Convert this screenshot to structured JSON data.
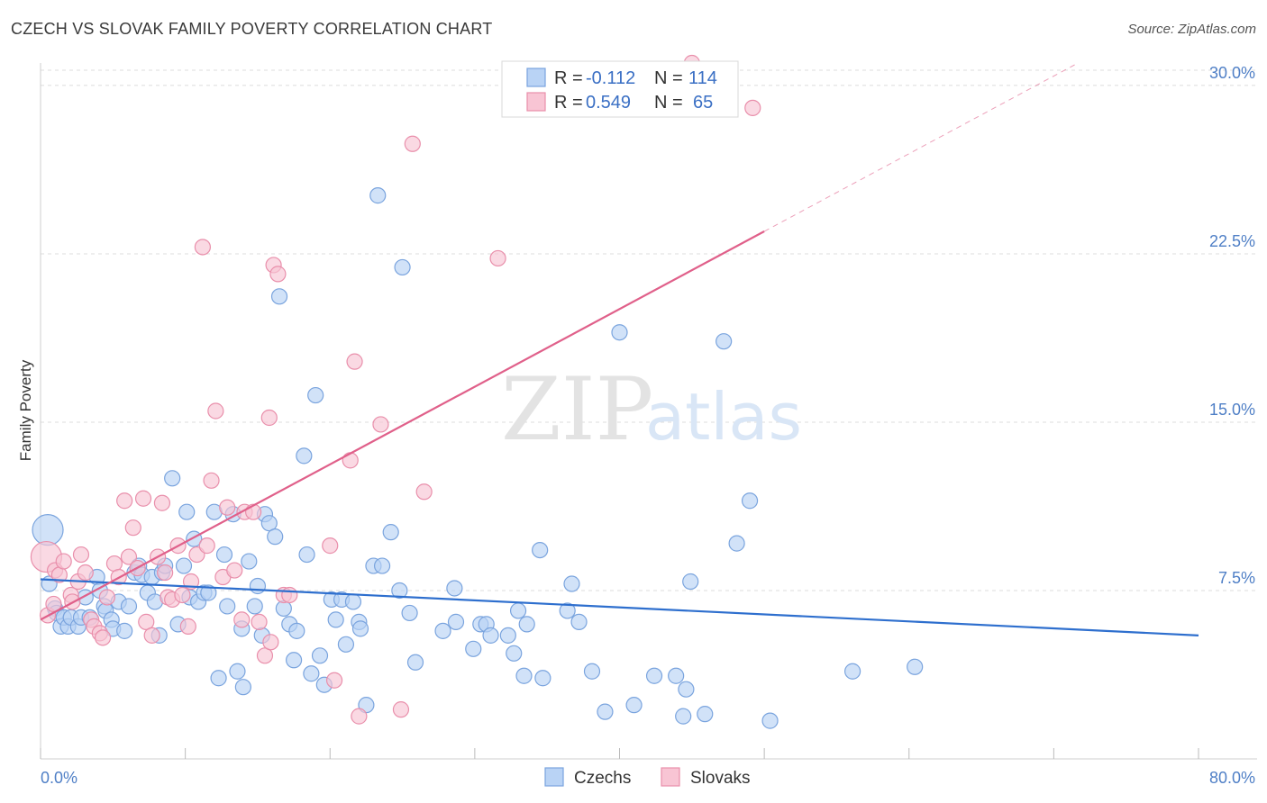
{
  "title": "CZECH VS SLOVAK FAMILY POVERTY CORRELATION CHART",
  "source": "Source: ZipAtlas.com",
  "watermark": {
    "zip": "ZIP",
    "atlas": "atlas"
  },
  "legend_top": [
    {
      "r_label": "R =",
      "r_value": "-0.112",
      "n_label": "N =",
      "n_value": "114"
    },
    {
      "r_label": "R =",
      "r_value": "0.549",
      "n_label": "N =",
      "n_value": "65"
    }
  ],
  "colors": {
    "czech_fill": "#b9d3f5",
    "czech_stroke": "#7aa4de",
    "czech_line": "#2e6fce",
    "slovak_fill": "#f8c5d4",
    "slovak_stroke": "#e98fab",
    "slovak_line": "#e0608a",
    "grid": "#dcdcdc",
    "axis_text": "#4f7fc6"
  },
  "chart_data": {
    "type": "scatter",
    "title": "CZECH VS SLOVAK FAMILY POVERTY CORRELATION CHART",
    "xlabel": "",
    "ylabel": "Family Poverty",
    "xlim": [
      0,
      80
    ],
    "ylim": [
      0,
      31
    ],
    "x_tick_labels": [
      "0.0%",
      "80.0%"
    ],
    "y_ticks": [
      7.5,
      15.0,
      22.5,
      30.0
    ],
    "y_tick_labels": [
      "7.5%",
      "15.0%",
      "22.5%",
      "30.0%"
    ],
    "grid": true,
    "legend_position": "top-center",
    "series": [
      {
        "name": "Czechs",
        "r": -0.112,
        "n": 114,
        "trend": {
          "x": [
            0,
            80
          ],
          "y": [
            8.0,
            5.5
          ]
        },
        "points": [
          [
            0.5,
            10.2
          ],
          [
            0.6,
            7.8
          ],
          [
            1.0,
            6.7
          ],
          [
            1.1,
            6.5
          ],
          [
            1.4,
            5.9
          ],
          [
            1.6,
            6.3
          ],
          [
            1.9,
            5.9
          ],
          [
            2.1,
            6.3
          ],
          [
            2.6,
            5.9
          ],
          [
            2.8,
            6.3
          ],
          [
            3.1,
            7.2
          ],
          [
            3.4,
            6.3
          ],
          [
            3.9,
            8.1
          ],
          [
            4.1,
            7.5
          ],
          [
            4.4,
            6.8
          ],
          [
            4.5,
            6.6
          ],
          [
            4.9,
            6.2
          ],
          [
            5.0,
            5.8
          ],
          [
            5.4,
            7.0
          ],
          [
            5.8,
            5.7
          ],
          [
            6.1,
            6.8
          ],
          [
            6.5,
            8.3
          ],
          [
            6.8,
            8.6
          ],
          [
            7.0,
            8.2
          ],
          [
            7.4,
            7.4
          ],
          [
            7.7,
            8.1
          ],
          [
            7.9,
            7.0
          ],
          [
            8.2,
            5.5
          ],
          [
            8.4,
            8.3
          ],
          [
            8.6,
            8.6
          ],
          [
            9.1,
            12.5
          ],
          [
            9.5,
            6.0
          ],
          [
            9.9,
            8.6
          ],
          [
            10.1,
            11.0
          ],
          [
            10.3,
            7.2
          ],
          [
            10.6,
            9.8
          ],
          [
            10.9,
            7.0
          ],
          [
            11.3,
            7.4
          ],
          [
            11.6,
            7.4
          ],
          [
            12.0,
            11.0
          ],
          [
            12.3,
            3.6
          ],
          [
            12.7,
            9.1
          ],
          [
            12.9,
            6.8
          ],
          [
            13.3,
            10.9
          ],
          [
            13.6,
            3.9
          ],
          [
            13.9,
            5.8
          ],
          [
            14.0,
            3.2
          ],
          [
            14.4,
            8.8
          ],
          [
            14.8,
            6.8
          ],
          [
            15.0,
            7.7
          ],
          [
            15.3,
            5.5
          ],
          [
            15.5,
            10.9
          ],
          [
            15.8,
            10.5
          ],
          [
            16.2,
            9.9
          ],
          [
            16.5,
            20.6
          ],
          [
            16.8,
            6.7
          ],
          [
            17.2,
            6.0
          ],
          [
            17.5,
            4.4
          ],
          [
            17.7,
            5.7
          ],
          [
            18.2,
            13.5
          ],
          [
            18.4,
            9.1
          ],
          [
            18.7,
            3.8
          ],
          [
            19.0,
            16.2
          ],
          [
            19.3,
            4.6
          ],
          [
            19.6,
            3.3
          ],
          [
            20.1,
            7.1
          ],
          [
            20.4,
            6.2
          ],
          [
            20.8,
            7.1
          ],
          [
            21.1,
            5.1
          ],
          [
            21.6,
            7.0
          ],
          [
            22.0,
            6.1
          ],
          [
            22.1,
            5.8
          ],
          [
            22.5,
            2.4
          ],
          [
            23.0,
            8.6
          ],
          [
            23.3,
            25.1
          ],
          [
            23.6,
            8.6
          ],
          [
            24.2,
            10.1
          ],
          [
            24.8,
            7.5
          ],
          [
            25.0,
            21.9
          ],
          [
            25.5,
            6.5
          ],
          [
            25.9,
            4.3
          ],
          [
            27.8,
            5.7
          ],
          [
            28.6,
            7.6
          ],
          [
            28.7,
            6.1
          ],
          [
            29.9,
            4.9
          ],
          [
            30.4,
            6.0
          ],
          [
            30.8,
            6.0
          ],
          [
            31.1,
            5.5
          ],
          [
            32.3,
            5.5
          ],
          [
            32.7,
            4.7
          ],
          [
            33.0,
            6.6
          ],
          [
            33.4,
            3.7
          ],
          [
            33.6,
            6.0
          ],
          [
            34.5,
            9.3
          ],
          [
            34.7,
            3.6
          ],
          [
            36.4,
            6.6
          ],
          [
            36.7,
            7.8
          ],
          [
            37.2,
            6.1
          ],
          [
            38.1,
            3.9
          ],
          [
            39.0,
            2.1
          ],
          [
            40.0,
            19.0
          ],
          [
            41.0,
            2.4
          ],
          [
            42.4,
            3.7
          ],
          [
            43.9,
            3.7
          ],
          [
            44.4,
            1.9
          ],
          [
            44.6,
            3.1
          ],
          [
            44.9,
            7.9
          ],
          [
            45.9,
            2.0
          ],
          [
            47.2,
            18.6
          ],
          [
            48.1,
            9.6
          ],
          [
            49.0,
            11.5
          ],
          [
            50.4,
            1.7
          ],
          [
            56.1,
            3.9
          ],
          [
            60.4,
            4.1
          ]
        ]
      },
      {
        "name": "Slovaks",
        "r": 0.549,
        "n": 65,
        "trend": {
          "x": [
            0,
            50.0
          ],
          "y": [
            6.2,
            23.5
          ]
        },
        "points": [
          [
            0.4,
            9.0
          ],
          [
            0.5,
            6.4
          ],
          [
            0.9,
            6.9
          ],
          [
            1.0,
            8.4
          ],
          [
            1.3,
            8.2
          ],
          [
            1.6,
            8.8
          ],
          [
            2.1,
            7.3
          ],
          [
            2.2,
            7.0
          ],
          [
            2.6,
            7.9
          ],
          [
            2.8,
            9.1
          ],
          [
            3.1,
            8.3
          ],
          [
            3.5,
            6.2
          ],
          [
            3.7,
            5.9
          ],
          [
            4.1,
            5.6
          ],
          [
            4.3,
            5.4
          ],
          [
            4.6,
            7.2
          ],
          [
            5.1,
            8.7
          ],
          [
            5.4,
            8.1
          ],
          [
            5.8,
            11.5
          ],
          [
            6.1,
            9.0
          ],
          [
            6.4,
            10.3
          ],
          [
            6.7,
            8.5
          ],
          [
            7.1,
            11.6
          ],
          [
            7.3,
            6.1
          ],
          [
            7.7,
            5.5
          ],
          [
            8.1,
            9.0
          ],
          [
            8.4,
            11.4
          ],
          [
            8.6,
            8.3
          ],
          [
            8.8,
            7.2
          ],
          [
            9.1,
            7.1
          ],
          [
            9.5,
            9.5
          ],
          [
            9.8,
            7.3
          ],
          [
            10.2,
            5.9
          ],
          [
            10.4,
            7.9
          ],
          [
            10.8,
            9.1
          ],
          [
            11.2,
            22.8
          ],
          [
            11.5,
            9.5
          ],
          [
            11.8,
            12.4
          ],
          [
            12.1,
            15.5
          ],
          [
            12.6,
            8.1
          ],
          [
            12.9,
            11.2
          ],
          [
            13.4,
            8.4
          ],
          [
            13.9,
            6.2
          ],
          [
            14.1,
            11.0
          ],
          [
            14.7,
            11.0
          ],
          [
            15.1,
            6.1
          ],
          [
            15.5,
            4.6
          ],
          [
            15.8,
            15.2
          ],
          [
            15.9,
            5.2
          ],
          [
            16.1,
            22.0
          ],
          [
            16.4,
            21.6
          ],
          [
            16.8,
            7.3
          ],
          [
            17.2,
            7.3
          ],
          [
            20.0,
            9.5
          ],
          [
            20.3,
            3.5
          ],
          [
            21.4,
            13.3
          ],
          [
            21.7,
            17.7
          ],
          [
            22.0,
            1.9
          ],
          [
            23.5,
            14.9
          ],
          [
            24.9,
            2.2
          ],
          [
            25.7,
            27.4
          ],
          [
            26.5,
            11.9
          ],
          [
            31.6,
            22.3
          ],
          [
            49.2,
            29.0
          ],
          [
            45.0,
            31.0
          ]
        ]
      }
    ]
  },
  "bottom_legend": [
    {
      "label": "Czechs"
    },
    {
      "label": "Slovaks"
    }
  ]
}
